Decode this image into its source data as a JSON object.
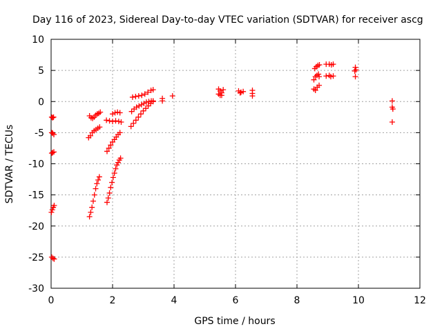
{
  "chart_data": {
    "type": "scatter",
    "title": "Day 116 of 2023, Sidereal Day-to-day VTEC variation (SDTVAR) for receiver ascg",
    "xlabel": "GPS time / hours",
    "ylabel": "SDTVAR / TECUs",
    "xlim": [
      0,
      12
    ],
    "ylim": [
      -30,
      10
    ],
    "xticks": [
      0,
      2,
      4,
      6,
      8,
      10,
      12
    ],
    "yticks": [
      -30,
      -25,
      -20,
      -15,
      -10,
      -5,
      0,
      5,
      10
    ],
    "xtick_labels": [
      "0",
      "2",
      "4",
      "6",
      "8",
      "10",
      "12"
    ],
    "ytick_labels": [
      "-30",
      "-25",
      "-20",
      "-15",
      "-10",
      "-5",
      "0",
      "5",
      "10"
    ],
    "grid": true,
    "legend": "none",
    "marker": "plus",
    "color": "#ff0000",
    "points": [
      [
        0.02,
        -2.5
      ],
      [
        0.05,
        -2.6
      ],
      [
        0.08,
        -2.5
      ],
      [
        0.02,
        -5.0
      ],
      [
        0.05,
        -5.1
      ],
      [
        0.09,
        -5.3
      ],
      [
        0.02,
        -8.3
      ],
      [
        0.05,
        -8.2
      ],
      [
        0.09,
        -8.1
      ],
      [
        0.01,
        -17.8
      ],
      [
        0.04,
        -17.4
      ],
      [
        0.07,
        -17.0
      ],
      [
        0.1,
        -16.7
      ],
      [
        0.02,
        -25.0
      ],
      [
        0.06,
        -25.2
      ],
      [
        0.1,
        -25.3
      ],
      [
        1.25,
        -2.3
      ],
      [
        1.3,
        -2.6
      ],
      [
        1.35,
        -2.7
      ],
      [
        1.4,
        -2.5
      ],
      [
        1.45,
        -2.2
      ],
      [
        1.5,
        -2.0
      ],
      [
        1.55,
        -1.9
      ],
      [
        1.6,
        -1.7
      ],
      [
        1.22,
        -5.8
      ],
      [
        1.28,
        -5.5
      ],
      [
        1.34,
        -5.0
      ],
      [
        1.4,
        -4.7
      ],
      [
        1.46,
        -4.5
      ],
      [
        1.52,
        -4.3
      ],
      [
        1.58,
        -4.1
      ],
      [
        1.25,
        -18.5
      ],
      [
        1.29,
        -17.8
      ],
      [
        1.33,
        -17.0
      ],
      [
        1.37,
        -16.0
      ],
      [
        1.41,
        -15.0
      ],
      [
        1.45,
        -14.0
      ],
      [
        1.49,
        -13.2
      ],
      [
        1.53,
        -12.6
      ],
      [
        1.57,
        -12.1
      ],
      [
        1.8,
        -3.0
      ],
      [
        1.9,
        -3.1
      ],
      [
        2.0,
        -3.2
      ],
      [
        2.1,
        -3.1
      ],
      [
        2.2,
        -3.2
      ],
      [
        2.28,
        -3.3
      ],
      [
        2.0,
        -2.0
      ],
      [
        2.08,
        -1.8
      ],
      [
        2.16,
        -1.7
      ],
      [
        2.24,
        -1.8
      ],
      [
        1.82,
        -8.0
      ],
      [
        1.88,
        -7.5
      ],
      [
        1.94,
        -7.0
      ],
      [
        2.0,
        -6.5
      ],
      [
        2.06,
        -6.1
      ],
      [
        2.12,
        -5.7
      ],
      [
        2.18,
        -5.3
      ],
      [
        2.24,
        -5.0
      ],
      [
        1.82,
        -16.2
      ],
      [
        1.86,
        -15.5
      ],
      [
        1.9,
        -14.7
      ],
      [
        1.94,
        -13.8
      ],
      [
        1.98,
        -13.0
      ],
      [
        2.02,
        -12.2
      ],
      [
        2.06,
        -11.5
      ],
      [
        2.1,
        -10.8
      ],
      [
        2.14,
        -10.2
      ],
      [
        2.18,
        -9.8
      ],
      [
        2.22,
        -9.4
      ],
      [
        2.26,
        -9.1
      ],
      [
        2.62,
        -1.6
      ],
      [
        2.7,
        -1.2
      ],
      [
        2.78,
        -0.9
      ],
      [
        2.86,
        -0.7
      ],
      [
        2.94,
        -0.5
      ],
      [
        3.02,
        -0.3
      ],
      [
        3.1,
        -0.1
      ],
      [
        3.18,
        0.0
      ],
      [
        3.26,
        0.1
      ],
      [
        3.32,
        0.1
      ],
      [
        2.65,
        0.7
      ],
      [
        2.75,
        0.8
      ],
      [
        2.85,
        0.9
      ],
      [
        2.95,
        1.0
      ],
      [
        3.05,
        1.2
      ],
      [
        3.15,
        1.5
      ],
      [
        3.25,
        1.8
      ],
      [
        3.32,
        1.9
      ],
      [
        2.6,
        -4.0
      ],
      [
        2.68,
        -3.5
      ],
      [
        2.76,
        -3.0
      ],
      [
        2.84,
        -2.5
      ],
      [
        2.92,
        -2.0
      ],
      [
        3.0,
        -1.5
      ],
      [
        3.08,
        -1.1
      ],
      [
        3.16,
        -0.7
      ],
      [
        3.24,
        -0.3
      ],
      [
        3.32,
        0.0
      ],
      [
        3.62,
        0.5
      ],
      [
        3.62,
        0.1
      ],
      [
        3.95,
        0.9
      ],
      [
        5.45,
        2.0
      ],
      [
        5.5,
        1.7
      ],
      [
        5.55,
        1.4
      ],
      [
        5.45,
        1.2
      ],
      [
        5.55,
        1.0
      ],
      [
        5.6,
        1.9
      ],
      [
        5.5,
        1.0
      ],
      [
        6.1,
        1.7
      ],
      [
        6.18,
        1.5
      ],
      [
        6.25,
        1.6
      ],
      [
        6.15,
        1.4
      ],
      [
        6.55,
        1.8
      ],
      [
        6.55,
        1.3
      ],
      [
        6.55,
        0.9
      ],
      [
        8.55,
        2.0
      ],
      [
        8.6,
        1.8
      ],
      [
        8.66,
        2.3
      ],
      [
        8.72,
        2.6
      ],
      [
        8.55,
        3.5
      ],
      [
        8.6,
        4.0
      ],
      [
        8.65,
        4.2
      ],
      [
        8.7,
        4.4
      ],
      [
        8.72,
        4.0
      ],
      [
        8.58,
        5.3
      ],
      [
        8.63,
        5.6
      ],
      [
        8.68,
        5.8
      ],
      [
        8.73,
        5.9
      ],
      [
        8.95,
        4.1
      ],
      [
        9.05,
        4.2
      ],
      [
        9.1,
        4.0
      ],
      [
        9.18,
        4.1
      ],
      [
        8.95,
        6.0
      ],
      [
        9.05,
        6.0
      ],
      [
        9.12,
        5.9
      ],
      [
        9.18,
        6.0
      ],
      [
        9.9,
        5.5
      ],
      [
        9.92,
        5.1
      ],
      [
        9.88,
        4.9
      ],
      [
        9.9,
        4.0
      ],
      [
        11.1,
        0.1
      ],
      [
        11.1,
        -0.9
      ],
      [
        11.12,
        -1.2
      ],
      [
        11.1,
        -3.3
      ]
    ]
  }
}
